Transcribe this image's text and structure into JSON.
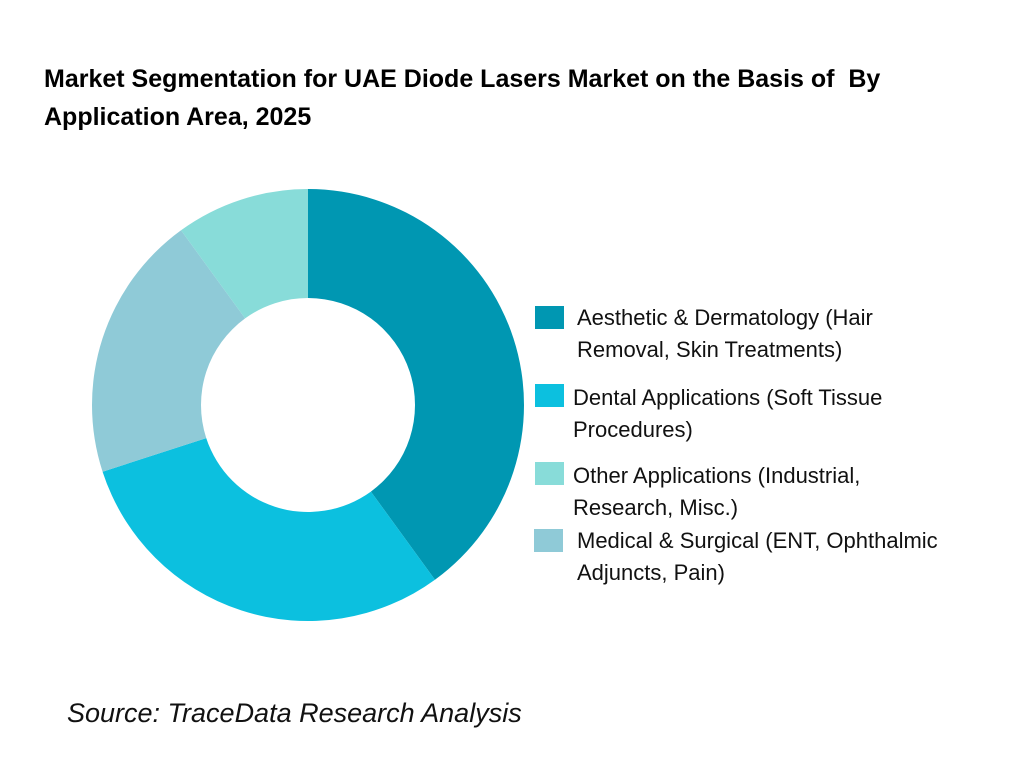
{
  "chart_data": {
    "type": "pie",
    "donut": true,
    "title": "Market Segmentation for UAE Diode Lasers Market on the Basis of  By Application Area, 2025",
    "unit": "%",
    "legend_position": "right",
    "slices": [
      {
        "name": "Aesthetic & Dermatology (Hair Removal, Skin Treatments)",
        "value": 40,
        "color": "#0097B2"
      },
      {
        "name": "Dental Applications (Soft Tissue Procedures)",
        "value": 30,
        "color": "#0CC0DF"
      },
      {
        "name": "Medical & Surgical (ENT, Ophthalmic Adjuncts, Pain)",
        "value": 20,
        "color": "#8FCAD7"
      },
      {
        "name": "Other Applications (Industrial, Research, Misc.)",
        "value": 10,
        "color": "#88DCD9"
      }
    ],
    "legend": [
      {
        "line1": "Aesthetic & Dermatology (Hair",
        "line2": "Removal, Skin Treatments)",
        "color": "#0097B2"
      },
      {
        "line1": "Dental Applications (Soft Tissue",
        "line2": "Procedures)",
        "color": "#0CC0DF"
      },
      {
        "line1": "Other Applications (Industrial,",
        "line2": "Research, Misc.)",
        "color": "#88DCD9"
      },
      {
        "line1": "Medical & Surgical (ENT, Ophthalmic",
        "line2": "Adjuncts, Pain)",
        "color": "#8FCAD7"
      }
    ]
  },
  "source": "Source: TraceData Research Analysis"
}
